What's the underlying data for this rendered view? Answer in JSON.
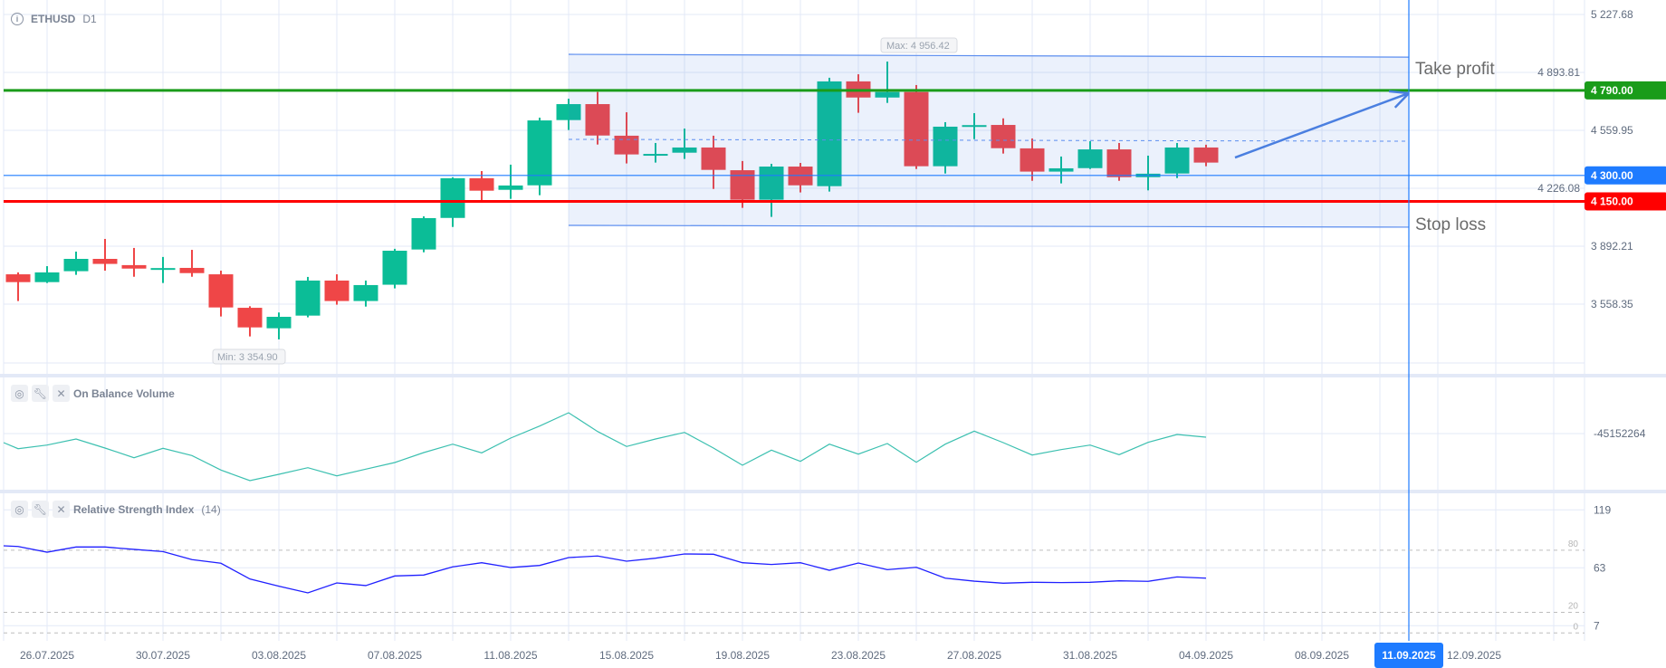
{
  "header": {
    "symbol": "ETHUSD",
    "timeframe": "D1",
    "info_icon": "info-icon"
  },
  "obv_panel": {
    "title": "On Balance Volume",
    "value_label": "-45152264",
    "icons": [
      "eye-icon",
      "wrench-icon",
      "close-icon"
    ]
  },
  "rsi_panel": {
    "title": "Relative Strength Index",
    "param": "(14)",
    "icons": [
      "eye-icon",
      "wrench-icon",
      "close-icon"
    ]
  },
  "annotations": {
    "take_profit": "Take profit",
    "stop_loss": "Stop loss",
    "max_label": "Max: 4 956.42",
    "min_label": "Min: 3 354.90"
  },
  "cursor_date": "11.09.2025",
  "colors": {
    "up": "#0bbd97",
    "down": "#ef4647",
    "take_profit": "#1a9c1a",
    "entry": "#1e7bff",
    "stop_loss": "#ff0000",
    "obv": "#3cc0b0",
    "rsi": "#2020ff",
    "channel": "#5b8def"
  },
  "chart_data": {
    "type": "candlestick",
    "symbol": "ETHUSD",
    "timeframe": "D1",
    "dates": [
      "25.07",
      "26.07",
      "27.07",
      "28.07",
      "29.07",
      "30.07",
      "31.07",
      "01.08",
      "02.08",
      "03.08",
      "04.08",
      "05.08",
      "06.08",
      "07.08",
      "08.08",
      "09.08",
      "10.08",
      "11.08",
      "12.08",
      "13.08",
      "14.08",
      "15.08",
      "16.08",
      "17.08",
      "18.08",
      "19.08",
      "20.08",
      "21.08",
      "22.08",
      "23.08",
      "24.08",
      "25.08",
      "26.08",
      "27.08",
      "28.08",
      "29.08",
      "30.08",
      "31.08",
      "01.09",
      "02.09",
      "03.09",
      "04.09"
    ],
    "ohlc": [
      [
        3730,
        3741,
        3576,
        3685
      ],
      [
        3685,
        3777,
        3680,
        3741
      ],
      [
        3748,
        3861,
        3727,
        3819
      ],
      [
        3819,
        3934,
        3751,
        3790
      ],
      [
        3783,
        3882,
        3716,
        3763
      ],
      [
        3764,
        3830,
        3680,
        3766
      ],
      [
        3767,
        3871,
        3716,
        3737
      ],
      [
        3730,
        3751,
        3487,
        3539
      ],
      [
        3537,
        3546,
        3372,
        3424
      ],
      [
        3419,
        3510,
        3355,
        3485
      ],
      [
        3492,
        3715,
        3482,
        3694
      ],
      [
        3694,
        3730,
        3555,
        3576
      ],
      [
        3576,
        3694,
        3544,
        3668
      ],
      [
        3670,
        3877,
        3649,
        3866
      ],
      [
        3873,
        4064,
        3857,
        4054
      ],
      [
        4055,
        4289,
        4003,
        4284
      ],
      [
        4284,
        4325,
        4152,
        4212
      ],
      [
        4217,
        4362,
        4165,
        4242
      ],
      [
        4243,
        4633,
        4186,
        4617
      ],
      [
        4619,
        4742,
        4562,
        4711
      ],
      [
        4711,
        4781,
        4478,
        4530
      ],
      [
        4529,
        4664,
        4369,
        4421
      ],
      [
        4423,
        4487,
        4374,
        4424
      ],
      [
        4431,
        4570,
        4395,
        4461
      ],
      [
        4461,
        4529,
        4222,
        4332
      ],
      [
        4330,
        4383,
        4113,
        4160
      ],
      [
        4160,
        4367,
        4061,
        4351
      ],
      [
        4351,
        4372,
        4202,
        4243
      ],
      [
        4238,
        4863,
        4207,
        4842
      ],
      [
        4842,
        4883,
        4661,
        4749
      ],
      [
        4749,
        4956.42,
        4718,
        4781
      ],
      [
        4781,
        4821,
        4337,
        4353
      ],
      [
        4353,
        4607,
        4311,
        4581
      ],
      [
        4589,
        4659,
        4509,
        4590
      ],
      [
        4591,
        4629,
        4426,
        4457
      ],
      [
        4456,
        4513,
        4269,
        4322
      ],
      [
        4322,
        4409,
        4254,
        4341
      ],
      [
        4342,
        4497,
        4337,
        4450
      ],
      [
        4450,
        4487,
        4269,
        4290
      ],
      [
        4290,
        4414,
        4214,
        4310
      ],
      [
        4311,
        4487,
        4285,
        4461
      ],
      [
        4461,
        4477,
        4353,
        4374
      ]
    ],
    "price_ticks": [
      {
        "value": 5227.68,
        "label": "5 227.68"
      },
      {
        "value": 4893.81,
        "label": "4 893.81"
      },
      {
        "value": 4559.95,
        "label": "4 559.95"
      },
      {
        "value": 4226.08,
        "label": "4 226.08"
      },
      {
        "value": 3892.21,
        "label": "3 892.21"
      },
      {
        "value": 3558.35,
        "label": "3 558.35"
      }
    ],
    "levels": [
      {
        "name": "take-profit",
        "value": 4790,
        "label": "4 790.00",
        "color": "#1a9c1a"
      },
      {
        "name": "entry",
        "value": 4300,
        "label": "4 300.00",
        "color": "#1e7bff"
      },
      {
        "name": "stop-loss",
        "value": 4150,
        "label": "4 150.00",
        "color": "#ff0000"
      }
    ],
    "channel": {
      "start_day": 19,
      "end_day": 48,
      "top": [
        4998,
        4982
      ],
      "bottom": [
        4012,
        4002
      ],
      "mid": [
        4508,
        4497
      ]
    },
    "arrow": {
      "from": [
        42,
        4403
      ],
      "to": [
        48,
        4774
      ]
    },
    "max": {
      "day": 30,
      "value": 4956.42
    },
    "min": {
      "day": 9,
      "value": 3354.9
    },
    "time_labels": [
      {
        "day": 1,
        "label": "26.07.2025"
      },
      {
        "day": 5,
        "label": "30.07.2025"
      },
      {
        "day": 9,
        "label": "03.08.2025"
      },
      {
        "day": 13,
        "label": "07.08.2025"
      },
      {
        "day": 17,
        "label": "11.08.2025"
      },
      {
        "day": 21,
        "label": "15.08.2025"
      },
      {
        "day": 25,
        "label": "19.08.2025"
      },
      {
        "day": 29,
        "label": "23.08.2025"
      },
      {
        "day": 33,
        "label": "27.08.2025"
      },
      {
        "day": 37,
        "label": "31.08.2025"
      },
      {
        "day": 41,
        "label": "04.09.2025"
      },
      {
        "day": 45,
        "label": "08.09.2025"
      },
      {
        "day": 49,
        "label": "12.09.2025"
      }
    ],
    "cursor_day": 48,
    "obv_millions_est": [
      -61.85,
      -57.85,
      -51.15,
      -61.15,
      -71.85,
      -61.45,
      -69.45,
      -85.45,
      -97.15,
      -90.15,
      -82.85,
      -91.85,
      -84.45,
      -77.15,
      -66.15,
      -56.85,
      -66.45,
      -50.15,
      -36.85,
      -22.15,
      -42.85,
      -59.45,
      -51.15,
      -43.85,
      -61.15,
      -80.15,
      -63.45,
      -75.85,
      -56.85,
      -67.85,
      -56.15,
      -76.85,
      -56.85,
      -42.45,
      -55.15,
      -68.85,
      -62.85,
      -57.85,
      -68.45,
      -54.85,
      -46.15,
      -49.15
    ],
    "obv_reference": -45152264,
    "rsi": [
      83.6,
      78.1,
      83.1,
      83.1,
      80.8,
      78.7,
      70.9,
      67.4,
      52.2,
      45.2,
      38.8,
      48.4,
      45.8,
      55.1,
      56,
      63.9,
      67.9,
      63.3,
      65.3,
      72.9,
      74.4,
      69.4,
      72.3,
      76.4,
      76.1,
      67.9,
      66.2,
      67.9,
      60.6,
      67.6,
      61.2,
      63.5,
      53,
      50.1,
      48.1,
      49,
      48.7,
      49,
      50.4,
      49.9,
      54.2,
      53
    ],
    "rsi_axis": [
      {
        "value": 119,
        "label": "119"
      },
      {
        "value": 63,
        "label": "63"
      },
      {
        "value": 7,
        "label": "7"
      }
    ],
    "rsi_levels": [
      {
        "value": 80,
        "label": "80"
      },
      {
        "value": 20,
        "label": "20"
      },
      {
        "value": 0,
        "label": "0"
      }
    ]
  }
}
